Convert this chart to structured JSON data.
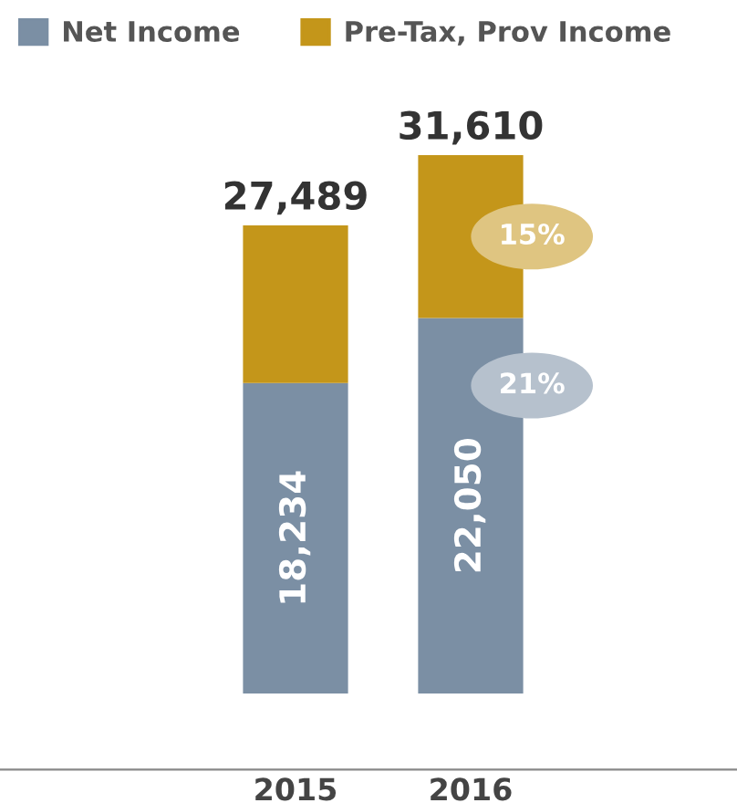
{
  "chart_data": {
    "type": "bar",
    "stacked": true,
    "categories": [
      "2015",
      "2016"
    ],
    "series": [
      {
        "name": "Net Income",
        "color": "#7b8fa4",
        "values": [
          18234,
          22050
        ],
        "value_labels": [
          "18,234",
          "22,050"
        ]
      },
      {
        "name": "Pre-Tax, Prov Income",
        "color": "#c4961a",
        "values": [
          9255,
          9560
        ]
      }
    ],
    "totals": [
      "27,489",
      "31,610"
    ],
    "annotations": [
      "15%",
      "21%"
    ],
    "legend": "top left",
    "grid": false
  }
}
